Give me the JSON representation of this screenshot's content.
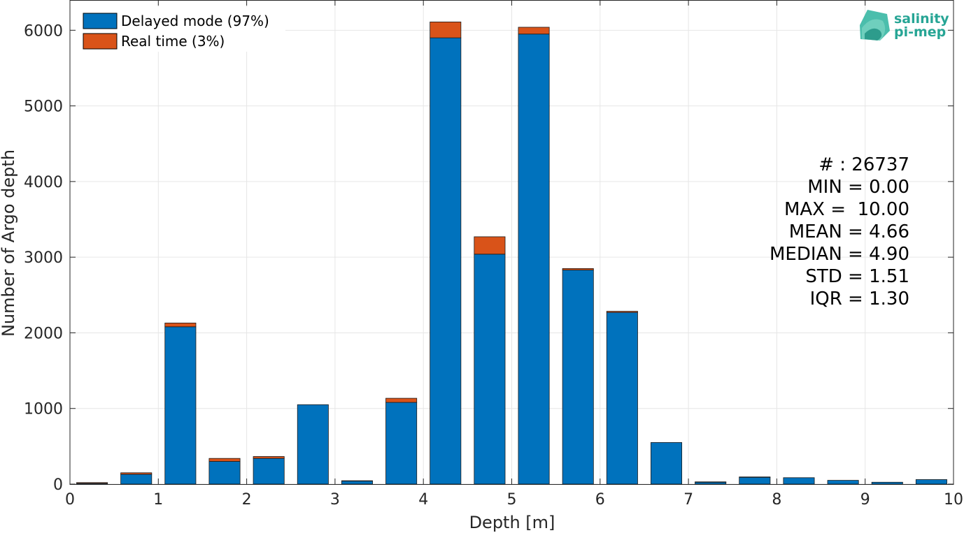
{
  "chart_data": {
    "type": "bar",
    "stacked": true,
    "xlabel": "Depth [m]",
    "ylabel": "Number of Argo depth",
    "xlim": [
      0,
      10
    ],
    "ylim": [
      0,
      6400
    ],
    "xticks": [
      0,
      1,
      2,
      3,
      4,
      5,
      6,
      7,
      8,
      9,
      10
    ],
    "yticks": [
      0,
      1000,
      2000,
      3000,
      4000,
      5000,
      6000
    ],
    "grid": true,
    "legend_position": "top-left",
    "bin_width": 0.5,
    "bin_centers": [
      0.25,
      0.75,
      1.25,
      1.75,
      2.25,
      2.75,
      3.25,
      3.75,
      4.25,
      4.75,
      5.25,
      5.75,
      6.25,
      6.75,
      7.25,
      7.75,
      8.25,
      8.75,
      9.25,
      9.75
    ],
    "series": [
      {
        "name": "Delayed mode (97%)",
        "color": "#0072BD",
        "values": [
          10,
          130,
          2080,
          300,
          340,
          1050,
          40,
          1080,
          5900,
          3040,
          5950,
          2830,
          2270,
          550,
          25,
          90,
          85,
          50,
          25,
          60
        ]
      },
      {
        "name": "Real time (3%)",
        "color": "#D95319",
        "values": [
          10,
          20,
          50,
          40,
          25,
          0,
          5,
          55,
          210,
          230,
          90,
          20,
          15,
          0,
          5,
          5,
          0,
          0,
          0,
          0
        ]
      }
    ],
    "annotations": [
      "# : 26737",
      "MIN = 0.00",
      "MAX =  10.00",
      "MEAN = 4.66",
      "MEDIAN = 4.90",
      "STD = 1.51",
      "IQR = 1.30"
    ]
  },
  "logo": {
    "line1": "salinity",
    "line2": "pi-mep",
    "color": "#27a595"
  }
}
